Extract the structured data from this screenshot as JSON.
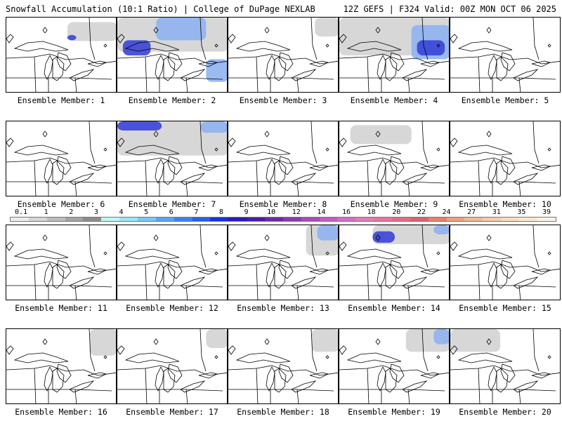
{
  "header": {
    "left": "Snowfall Accumulation (10:1 Ratio) | College of DuPage NEXLAB",
    "right": "12Z GEFS | F324 Valid: 00Z MON OCT 06 2025"
  },
  "chart_data": {
    "type": "map-panels",
    "title": "Snowfall Accumulation (10:1 Ratio)",
    "model": "12Z GEFS",
    "forecast_hour": "F324",
    "valid": "00Z MON OCT 06 2025",
    "units": "inches",
    "region": "Great Lakes",
    "legend": {
      "ticks": [
        "0.1",
        "1",
        "2",
        "3",
        "4",
        "5",
        "6",
        "7",
        "8",
        "9",
        "10",
        "12",
        "14",
        "16",
        "18",
        "20",
        "22",
        "24",
        "27",
        "31",
        "35",
        "39"
      ],
      "colors": [
        "#ececec",
        "#d6d6d6",
        "#bdbdbd",
        "#a3a3a3",
        "#8c8c8c",
        "#bff6f6",
        "#9be4f6",
        "#7cc6f7",
        "#5aa3f2",
        "#3f7ff0",
        "#2b5ee6",
        "#1a2fe0",
        "#2a1ab8",
        "#4a1aa6",
        "#6a2aa6",
        "#8a3ab0",
        "#a84ab8",
        "#c45ac4",
        "#d86ad0",
        "#e57ab8",
        "#ea72a0",
        "#e66a8a",
        "#df6070",
        "#e8806c",
        "#eea07e",
        "#f2b896",
        "#f6ccaa",
        "#f9dcbf",
        "#fbe8d2",
        "#fdf3e6"
      ]
    },
    "members": [
      {
        "label": "Ensemble Member: 1",
        "snow": [
          [
            0.55,
            0.06,
            0.45,
            0.25,
            "light"
          ],
          [
            0.55,
            0.23,
            0.08,
            0.07,
            "heavy"
          ]
        ]
      },
      {
        "label": "Ensemble Member: 2",
        "snow": [
          [
            0.0,
            0.0,
            1.0,
            0.45,
            "light"
          ],
          [
            0.35,
            0.0,
            0.45,
            0.3,
            "med"
          ],
          [
            0.05,
            0.3,
            0.25,
            0.2,
            "heavy"
          ],
          [
            0.8,
            0.55,
            0.2,
            0.3,
            "med"
          ]
        ]
      },
      {
        "label": "Ensemble Member: 3",
        "snow": [
          [
            0.78,
            0.0,
            0.22,
            0.25,
            "light"
          ]
        ]
      },
      {
        "label": "Ensemble Member: 4",
        "snow": [
          [
            0.0,
            0.0,
            1.0,
            0.5,
            "light"
          ],
          [
            0.65,
            0.1,
            0.35,
            0.45,
            "med"
          ],
          [
            0.7,
            0.3,
            0.25,
            0.2,
            "heavy"
          ]
        ]
      },
      {
        "label": "Ensemble Member: 5",
        "snow": []
      },
      {
        "label": "Ensemble Member: 6",
        "snow": []
      },
      {
        "label": "Ensemble Member: 7",
        "snow": [
          [
            0.0,
            0.0,
            1.0,
            0.45,
            "light"
          ],
          [
            0.0,
            0.0,
            0.4,
            0.12,
            "heavy"
          ],
          [
            0.75,
            0.0,
            0.25,
            0.15,
            "med"
          ]
        ]
      },
      {
        "label": "Ensemble Member: 8",
        "snow": []
      },
      {
        "label": "Ensemble Member: 9",
        "snow": [
          [
            0.1,
            0.05,
            0.55,
            0.25,
            "light"
          ]
        ]
      },
      {
        "label": "Ensemble Member: 10",
        "snow": []
      },
      {
        "label": "Ensemble Member: 11",
        "snow": []
      },
      {
        "label": "Ensemble Member: 12",
        "snow": []
      },
      {
        "label": "Ensemble Member: 13",
        "snow": [
          [
            0.7,
            0.0,
            0.3,
            0.4,
            "light"
          ],
          [
            0.8,
            0.0,
            0.2,
            0.2,
            "med"
          ]
        ]
      },
      {
        "label": "Ensemble Member: 14",
        "snow": [
          [
            0.3,
            0.0,
            0.7,
            0.25,
            "light"
          ],
          [
            0.3,
            0.08,
            0.2,
            0.15,
            "heavy"
          ],
          [
            0.85,
            0.0,
            0.15,
            0.12,
            "med"
          ]
        ]
      },
      {
        "label": "Ensemble Member: 15",
        "snow": []
      },
      {
        "label": "Ensemble Member: 16",
        "snow": [
          [
            0.75,
            0.0,
            0.25,
            0.35,
            "light"
          ]
        ]
      },
      {
        "label": "Ensemble Member: 17",
        "snow": [
          [
            0.8,
            0.0,
            0.2,
            0.25,
            "light"
          ]
        ]
      },
      {
        "label": "Ensemble Member: 18",
        "snow": [
          [
            0.75,
            0.0,
            0.25,
            0.3,
            "light"
          ]
        ]
      },
      {
        "label": "Ensemble Member: 19",
        "snow": [
          [
            0.6,
            0.0,
            0.4,
            0.3,
            "light"
          ],
          [
            0.85,
            0.0,
            0.15,
            0.2,
            "med"
          ]
        ]
      },
      {
        "label": "Ensemble Member: 20",
        "snow": [
          [
            0.0,
            0.0,
            0.45,
            0.3,
            "light"
          ]
        ]
      }
    ]
  }
}
